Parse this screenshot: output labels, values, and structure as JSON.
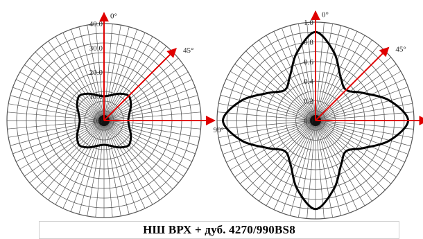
{
  "caption": "НШ ВРХ + дуб. 4270/990BS8",
  "colors": {
    "grid": "#555555",
    "curve": "#000000",
    "arrow": "#e00000",
    "axis": "#000000"
  },
  "chart_data": [
    {
      "type": "polar",
      "rmax": 40,
      "r_ticks": [
        0.0,
        10.0,
        20.0,
        30.0,
        40.0
      ],
      "r_tick_labels": [
        "0.0",
        "10.0",
        "20.0",
        "30.0",
        "40.0"
      ],
      "direction_labels": [
        "0°",
        "45°",
        "90°"
      ],
      "angles_deg": [
        0,
        15,
        30,
        45,
        60,
        75,
        90,
        105,
        120,
        135,
        150,
        165,
        180,
        195,
        210,
        225,
        240,
        255,
        270,
        285,
        300,
        315,
        330,
        345
      ],
      "values": [
        10.0,
        10.8,
        12.8,
        14.4,
        12.8,
        10.8,
        10.0,
        10.8,
        12.8,
        14.4,
        12.8,
        10.8,
        10.0,
        10.8,
        12.8,
        14.4,
        12.8,
        10.8,
        10.0,
        10.8,
        12.8,
        14.4,
        12.8,
        10.8
      ]
    },
    {
      "type": "polar",
      "rmax": 1.0,
      "r_ticks": [
        0.0,
        0.2,
        0.4,
        0.6,
        0.8,
        1.0
      ],
      "r_tick_labels": [
        "0.0",
        "0.2",
        "0.4",
        "0.6",
        "0.8",
        "1.0"
      ],
      "direction_labels": [
        "0°",
        "45°",
        "90°"
      ],
      "angles_deg": [
        0,
        15,
        30,
        45,
        60,
        75,
        90,
        105,
        120,
        135,
        150,
        165,
        180,
        195,
        210,
        225,
        240,
        255,
        270,
        285,
        300,
        315,
        330,
        345
      ],
      "values": [
        0.9,
        0.72,
        0.51,
        0.44,
        0.56,
        0.78,
        0.94,
        0.78,
        0.56,
        0.44,
        0.52,
        0.72,
        0.9,
        0.72,
        0.51,
        0.44,
        0.56,
        0.78,
        0.94,
        0.78,
        0.56,
        0.44,
        0.52,
        0.72
      ]
    }
  ]
}
